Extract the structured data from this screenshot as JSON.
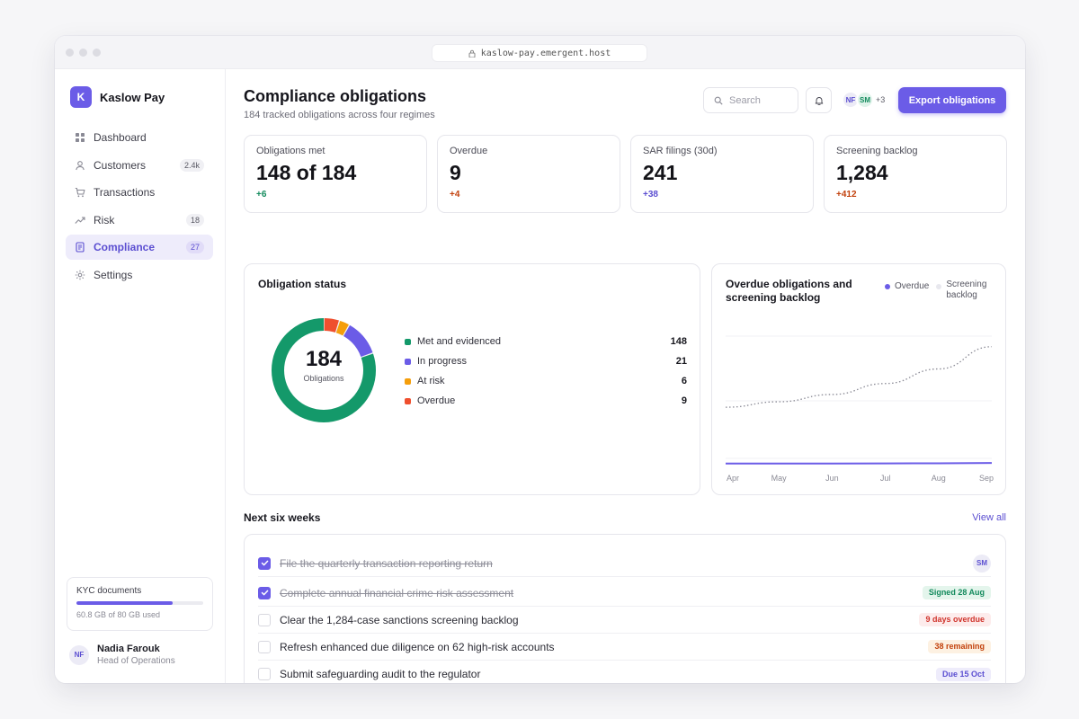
{
  "browser": {
    "url": "kaslow-pay.emergent.host"
  },
  "sidebar": {
    "brand_initial": "K",
    "brand_name": "Kaslow Pay",
    "items": [
      {
        "label": "Dashboard",
        "icon": "grid-icon",
        "badge": ""
      },
      {
        "label": "Customers",
        "icon": "user-icon",
        "badge": "2.4k"
      },
      {
        "label": "Transactions",
        "icon": "cart-icon",
        "badge": ""
      },
      {
        "label": "Risk",
        "icon": "trend-icon",
        "badge": "18"
      },
      {
        "label": "Compliance",
        "icon": "document-icon",
        "badge": "27",
        "active": true
      },
      {
        "label": "Settings",
        "icon": "gear-icon",
        "badge": ""
      }
    ],
    "storage": {
      "title": "KYC documents",
      "used_text": "60.8 GB of 80 GB used",
      "fraction_used": 0.76
    },
    "user": {
      "initials": "NF",
      "name": "Nadia Farouk",
      "role": "Head of Operations"
    }
  },
  "header": {
    "title": "Compliance obligations",
    "subtitle": "184 tracked obligations across four regimes",
    "search_placeholder": "Search",
    "avatars": [
      {
        "initials": "NF",
        "bg": "#ecebf6",
        "fg": "#5b4ed1"
      },
      {
        "initials": "SM",
        "bg": "#dff3ea",
        "fg": "#128a5c"
      }
    ],
    "avatars_more": "+3",
    "export_label": "Export obligations"
  },
  "kpis": [
    {
      "label": "Obligations met",
      "value": "148 of 184",
      "delta": "+6",
      "delta_color": "#128a5c"
    },
    {
      "label": "Overdue",
      "value": "9",
      "delta": "+4",
      "delta_color": "#c2410c"
    },
    {
      "label": "SAR filings (30d)",
      "value": "241",
      "delta": "+38",
      "delta_color": "#5b4ed1"
    },
    {
      "label": "Screening backlog",
      "value": "1,284",
      "delta": "+412",
      "delta_color": "#c2410c"
    }
  ],
  "status_card": {
    "title": "Obligation status",
    "center_value": "184",
    "center_label": "Obligations",
    "segments": [
      {
        "label": "Met and evidenced",
        "value": 148,
        "color": "#14996a"
      },
      {
        "label": "In progress",
        "value": 21,
        "color": "#6b5ce7"
      },
      {
        "label": "At risk",
        "value": 6,
        "color": "#f59e0b"
      },
      {
        "label": "Overdue",
        "value": 9,
        "color": "#ef4f2e"
      }
    ]
  },
  "chart_data": {
    "type": "line",
    "title": "Overdue obligations and screening backlog",
    "x": [
      "Apr",
      "May",
      "Jun",
      "Jul",
      "Aug",
      "Sep"
    ],
    "series": [
      {
        "name": "Overdue",
        "color": "#6b5ce7",
        "style": "solid-area",
        "values": [
          3,
          3,
          3,
          4,
          5,
          9
        ]
      },
      {
        "name": "Screening backlog",
        "color": "#8a8a95",
        "style": "dotted",
        "values": [
          620,
          680,
          760,
          880,
          1040,
          1284
        ]
      }
    ],
    "ylim": [
      0,
      1400
    ],
    "grid": true,
    "legend_position": "top-right"
  },
  "tasks_section": {
    "title": "Next six weeks",
    "view_all": "View all",
    "items": [
      {
        "text": "File the quarterly transaction reporting return",
        "done": true,
        "tag_type": "avatar",
        "tag": "SM"
      },
      {
        "text": "Complete annual financial crime risk assessment",
        "done": true,
        "tag_type": "pill",
        "tag": "Signed 28 Aug",
        "tag_bg": "#e4f5ec",
        "tag_fg": "#128a5c"
      },
      {
        "text": "Clear the 1,284-case sanctions screening backlog",
        "done": false,
        "tag_type": "pill",
        "tag": "9 days overdue",
        "tag_bg": "#fdecec",
        "tag_fg": "#d0342c"
      },
      {
        "text": "Refresh enhanced due diligence on 62 high-risk accounts",
        "done": false,
        "tag_type": "pill",
        "tag": "38 remaining",
        "tag_bg": "#fdf1e2",
        "tag_fg": "#c2410c"
      },
      {
        "text": "Submit safeguarding audit to the regulator",
        "done": false,
        "tag_type": "pill",
        "tag": "Due 15 Oct",
        "tag_bg": "#eeecfb",
        "tag_fg": "#5b4ed1"
      }
    ]
  }
}
